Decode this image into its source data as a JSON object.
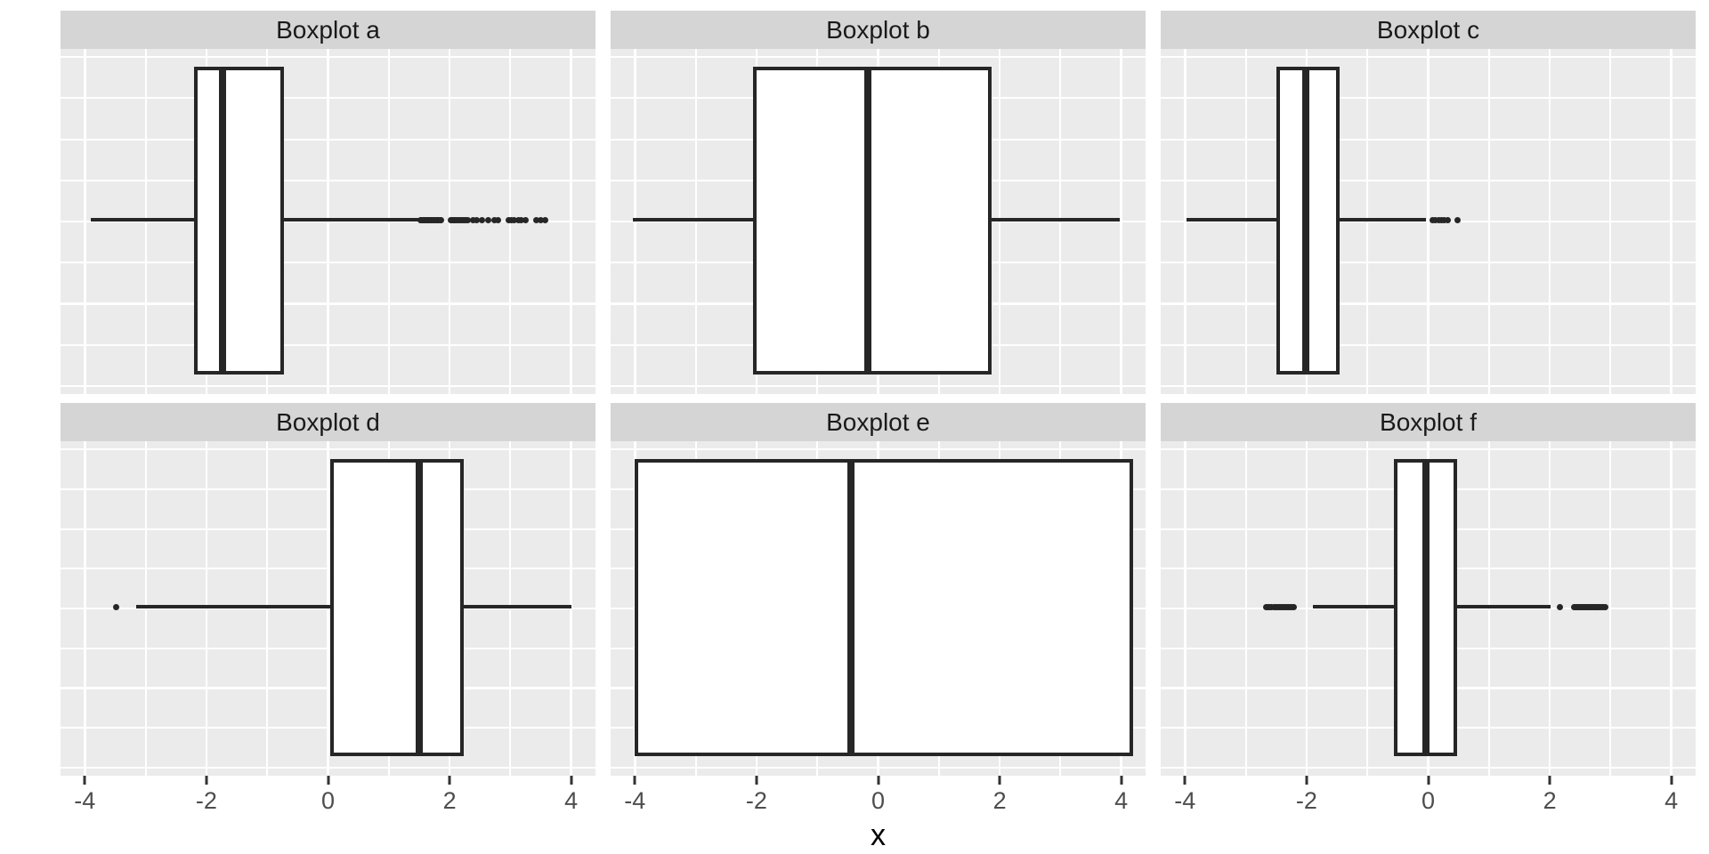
{
  "figure": {
    "kind": "ggplot-style faceted horizontal boxplots",
    "background": "#ffffff"
  },
  "colors": {
    "strip_bg": "#d5d5d5",
    "strip_text": "#1a1a1a",
    "panel_bg": "#ebebeb",
    "gridline": "#ffffff",
    "box_line": "#262626",
    "box_fill": "#ffffff",
    "outlier": "#262626",
    "tick_mark": "#333333",
    "tick_label_color": "#4d4d4d",
    "axis_title_color": "#000000"
  },
  "axis": {
    "title_x": "x",
    "tick_labels": [
      "-4",
      "-2",
      "0",
      "2",
      "4"
    ],
    "tick_values": [
      -4,
      -2,
      0,
      2,
      4
    ],
    "minor_values": [
      -3,
      -1,
      1,
      3
    ],
    "range": [
      -4.4,
      4.4
    ]
  },
  "chart_data": {
    "type": "boxplot",
    "orientation": "horizontal",
    "facet_layout": {
      "rows": 2,
      "cols": 3
    },
    "x_range": [
      -4.4,
      4.4
    ],
    "x_ticks": [
      -4,
      -2,
      0,
      2,
      4
    ],
    "xlabel": "x",
    "grid": "white major and minor lines on grey panel",
    "facets": [
      {
        "label": "Boxplot a",
        "whisker_low": -3.9,
        "q1": -2.2,
        "median": -1.74,
        "q3": -0.72,
        "whisker_high": 1.48,
        "outliers": [
          1.52,
          1.54,
          1.56,
          1.58,
          1.6,
          1.62,
          1.64,
          1.66,
          1.68,
          1.7,
          1.72,
          1.74,
          1.76,
          1.78,
          1.8,
          1.82,
          1.84,
          1.86,
          2.02,
          2.04,
          2.06,
          2.08,
          2.1,
          2.12,
          2.15,
          2.18,
          2.21,
          2.24,
          2.27,
          2.3,
          2.38,
          2.44,
          2.54,
          2.63,
          2.74,
          2.8,
          2.97,
          3.01,
          3.06,
          3.13,
          3.18,
          3.25,
          3.43,
          3.5,
          3.57
        ]
      },
      {
        "label": "Boxplot b",
        "whisker_low": -4.04,
        "q1": -2.06,
        "median": -0.17,
        "q3": 1.87,
        "whisker_high": 3.97,
        "outliers": []
      },
      {
        "label": "Boxplot c",
        "whisker_low": -3.97,
        "q1": -2.5,
        "median": -2.02,
        "q3": -1.45,
        "whisker_high": -0.03,
        "outliers": [
          0.07,
          0.12,
          0.17,
          0.22,
          0.27,
          0.32,
          0.48
        ]
      },
      {
        "label": "Boxplot d",
        "whisker_low": -3.15,
        "q1": 0.03,
        "median": 1.5,
        "q3": 2.23,
        "whisker_high": 4.0,
        "outliers": [
          -3.48
        ]
      },
      {
        "label": "Boxplot e",
        "whisker_low": -4.0,
        "q1": -4.0,
        "median": -0.45,
        "q3": 4.2,
        "whisker_high": 4.2,
        "outliers": []
      },
      {
        "label": "Boxplot f",
        "whisker_low": -1.9,
        "q1": -0.56,
        "median": -0.03,
        "q3": 0.47,
        "whisker_high": 2.02,
        "outliers": [
          -2.66,
          -2.63,
          -2.6,
          -2.57,
          -2.54,
          -2.51,
          -2.48,
          -2.45,
          -2.42,
          -2.39,
          -2.36,
          -2.33,
          -2.3,
          -2.27,
          -2.24,
          -2.21,
          2.17,
          2.4,
          2.42,
          2.44,
          2.46,
          2.48,
          2.5,
          2.52,
          2.54,
          2.56,
          2.58,
          2.6,
          2.62,
          2.64,
          2.66,
          2.68,
          2.7,
          2.72,
          2.74,
          2.76,
          2.78,
          2.8,
          2.83,
          2.86,
          2.89,
          2.92
        ]
      }
    ]
  }
}
